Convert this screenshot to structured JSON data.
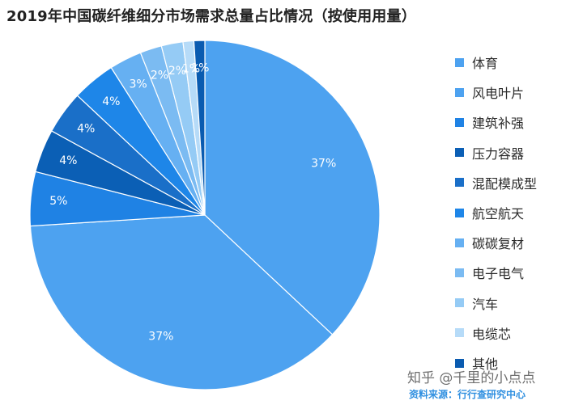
{
  "title": "2019年中国碳纤维细分市场需求总量占比情况（按使用用量）",
  "chart_data": {
    "type": "pie",
    "start": "12 o'clock",
    "direction": "clockwise",
    "label_color": "#ffffff",
    "slices": [
      {
        "name": "体育",
        "value": 37,
        "label": "37%",
        "color": "#4da2f0"
      },
      {
        "name": "风电叶片",
        "value": 37,
        "label": "37%",
        "color": "#4da2f0"
      },
      {
        "name": "建筑补强",
        "value": 5,
        "label": "5%",
        "color": "#1f82e4"
      },
      {
        "name": "压力容器",
        "value": 4,
        "label": "4%",
        "color": "#0b5fb5"
      },
      {
        "name": "混配模成型",
        "value": 4,
        "label": "4%",
        "color": "#1a6fc8"
      },
      {
        "name": "航空航天",
        "value": 4,
        "label": "4%",
        "color": "#1e86e8"
      },
      {
        "name": "碳碳复材",
        "value": 3,
        "label": "3%",
        "color": "#66b0f2"
      },
      {
        "name": "电子电气",
        "value": 2,
        "label": "2%",
        "color": "#7bbbf2"
      },
      {
        "name": "汽车",
        "value": 2,
        "label": "2%",
        "color": "#95cbf5"
      },
      {
        "name": "电缆芯",
        "value": 1,
        "label": "1%",
        "color": "#b6dbf8"
      },
      {
        "name": "其他",
        "value": 1,
        "label": "1%",
        "color": "#0a5bb0"
      }
    ],
    "legend_position": "right"
  },
  "watermark": "知乎 @千里的小点点",
  "source": "资料来源：行行查研究中心"
}
